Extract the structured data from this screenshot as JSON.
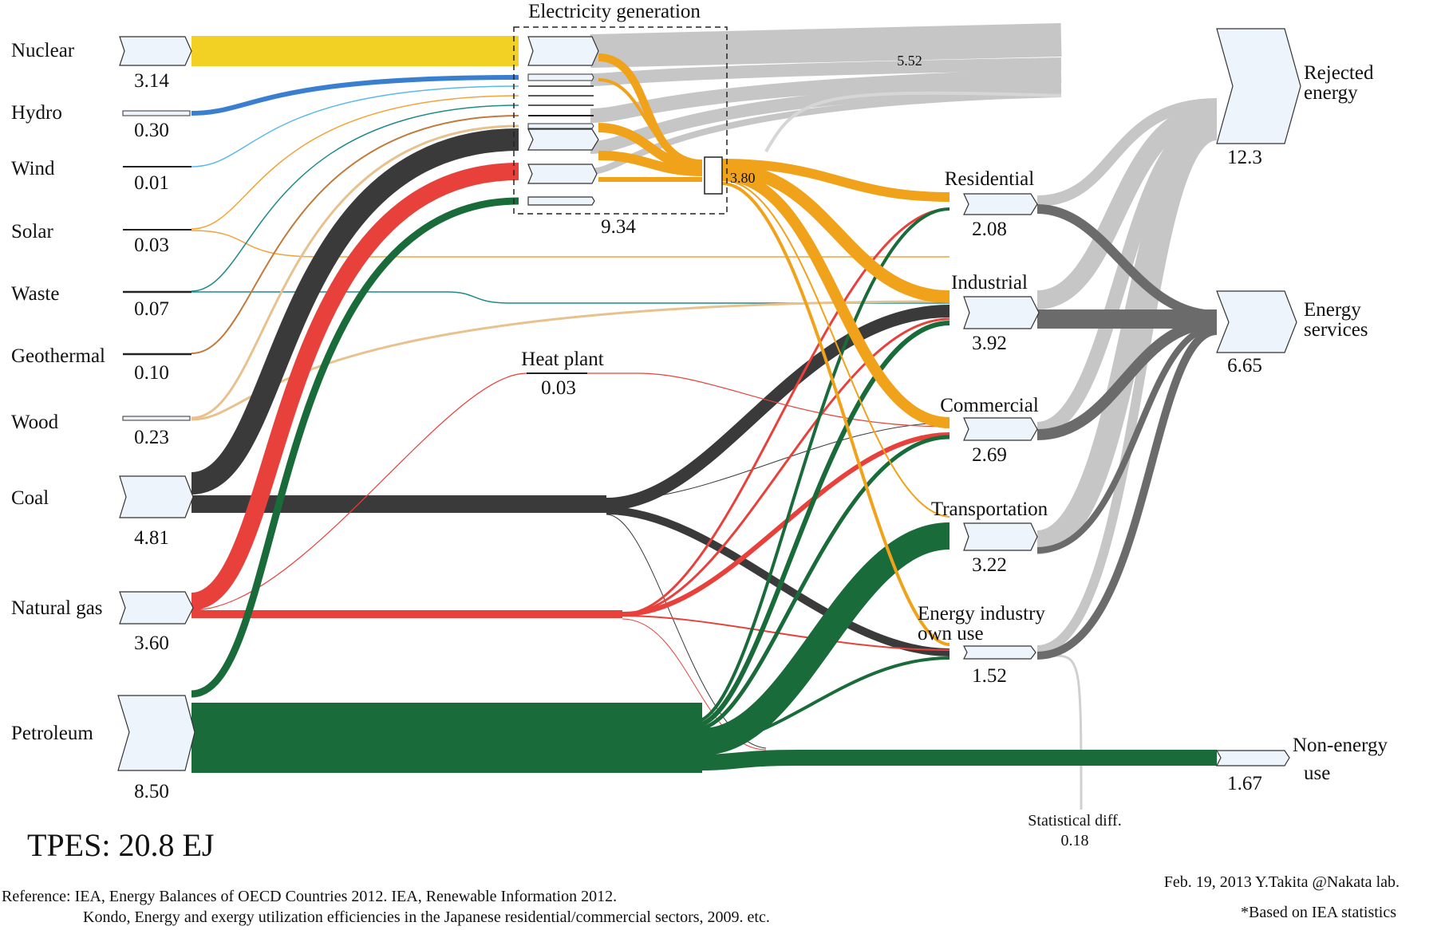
{
  "title": "TPES: 20.8 EJ",
  "sources": [
    {
      "key": "nuclear",
      "label": "Nuclear",
      "value": "3.14",
      "color": "#f2d024"
    },
    {
      "key": "hydro",
      "label": "Hydro",
      "value": "0.30",
      "color": "#3a7fcf"
    },
    {
      "key": "wind",
      "label": "Wind",
      "value": "0.01",
      "color": "#5ab8ea"
    },
    {
      "key": "solar",
      "label": "Solar",
      "value": "0.03",
      "color": "#f2a33a"
    },
    {
      "key": "waste",
      "label": "Waste",
      "value": "0.07",
      "color": "#1f8a8a"
    },
    {
      "key": "geothermal",
      "label": "Geothermal",
      "value": "0.10",
      "color": "#c07a3a"
    },
    {
      "key": "wood",
      "label": "Wood",
      "value": "0.23",
      "color": "#e8c28e"
    },
    {
      "key": "coal",
      "label": "Coal",
      "value": "4.81",
      "color": "#3a3a3a"
    },
    {
      "key": "gas",
      "label": "Natural gas",
      "value": "3.60",
      "color": "#e8413c"
    },
    {
      "key": "petroleum",
      "label": "Petroleum",
      "value": "8.50",
      "color": "#1a6b3a"
    }
  ],
  "conversion": {
    "electricity_label": "Electricity generation",
    "electricity_value": "9.34",
    "electricity_output": "3.80",
    "electricity_loss": "5.52",
    "heat_label": "Heat plant",
    "heat_value": "0.03",
    "electricity_color": "#f0a21a"
  },
  "sectors": [
    {
      "key": "residential",
      "label": "Residential",
      "value": "2.08"
    },
    {
      "key": "industrial",
      "label": "Industrial",
      "value": "3.92"
    },
    {
      "key": "commercial",
      "label": "Commercial",
      "value": "2.69"
    },
    {
      "key": "transportation",
      "label": "Transportation",
      "value": "3.22"
    },
    {
      "key": "energy_industry",
      "label_line1": "Energy industry",
      "label_line2": "own use",
      "value": "1.52"
    }
  ],
  "outputs": {
    "rejected": {
      "label_line1": "Rejected",
      "label_line2": "energy",
      "value": "12.3",
      "color": "#c8c8c8"
    },
    "services": {
      "label_line1": "Energy",
      "label_line2": "services",
      "value": "6.65",
      "color": "#6b6b6b"
    },
    "nonenergy": {
      "label_line1": "Non-energy",
      "label_line2": "use",
      "value": "1.67"
    },
    "statdiff": {
      "label": "Statistical diff.",
      "value": "0.18"
    }
  },
  "footer": {
    "reference_line1": "Reference: IEA, Energy Balances of OECD Countries 2012. IEA, Renewable Information 2012.",
    "reference_line2": "Kondo, Energy and exergy utilization efficiencies in the Japanese residential/commercial sectors, 2009.   etc.",
    "credit": "Feb. 19, 2013   Y.Takita @Nakata lab.",
    "based_on": "*Based on IEA statistics"
  },
  "box_fill": "#eef4fb"
}
